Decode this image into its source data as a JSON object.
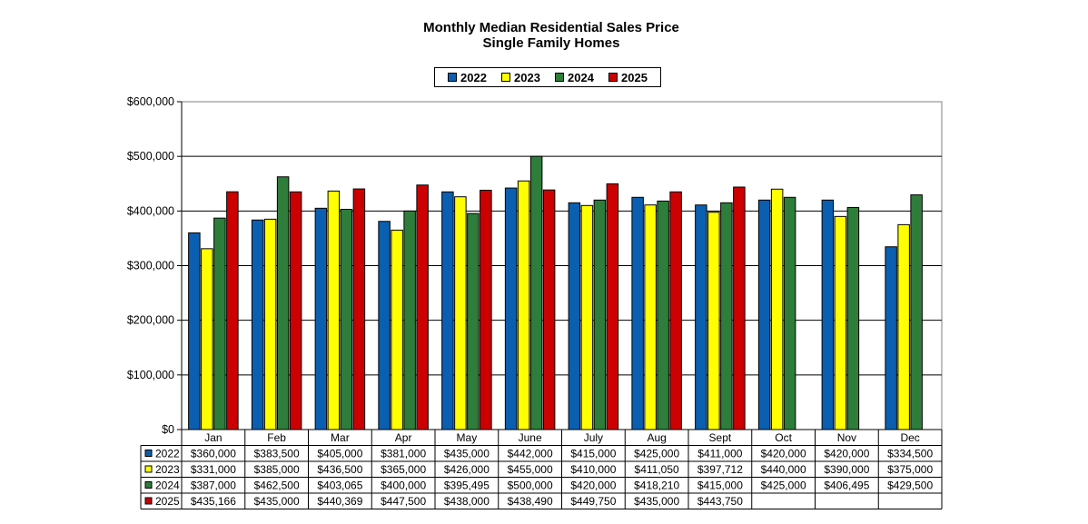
{
  "chart_data": {
    "type": "bar",
    "title": "Monthly Median Residential Sales Price",
    "subtitle": "Single Family Homes",
    "xlabel": "",
    "ylabel": "",
    "ylim": [
      0,
      600000
    ],
    "yticks": [
      0,
      100000,
      200000,
      300000,
      400000,
      500000,
      600000
    ],
    "ytick_labels": [
      "$0",
      "$100,000",
      "$200,000",
      "$300,000",
      "$400,000",
      "$500,000",
      "$600,000"
    ],
    "grid": true,
    "legend_position": "top-center",
    "categories": [
      "Jan",
      "Feb",
      "Mar",
      "Apr",
      "May",
      "June",
      "July",
      "Aug",
      "Sept",
      "Oct",
      "Nov",
      "Dec"
    ],
    "series": [
      {
        "name": "2022",
        "color": "#0b5fb0",
        "values": [
          360000,
          383500,
          405000,
          381000,
          435000,
          442000,
          415000,
          425000,
          411000,
          420000,
          420000,
          334500
        ],
        "labels": [
          "$360,000",
          "$383,500",
          "$405,000",
          "$381,000",
          "$435,000",
          "$442,000",
          "$415,000",
          "$425,000",
          "$411,000",
          "$420,000",
          "$420,000",
          "$334,500"
        ]
      },
      {
        "name": "2023",
        "color": "#ffff00",
        "values": [
          331000,
          385000,
          436500,
          365000,
          426000,
          455000,
          410000,
          411050,
          397712,
          440000,
          390000,
          375000
        ],
        "labels": [
          "$331,000",
          "$385,000",
          "$436,500",
          "$365,000",
          "$426,000",
          "$455,000",
          "$410,000",
          "$411,050",
          "$397,712",
          "$440,000",
          "$390,000",
          "$375,000"
        ]
      },
      {
        "name": "2024",
        "color": "#2e7d3a",
        "values": [
          387000,
          462500,
          403065,
          400000,
          395495,
          500000,
          420000,
          418210,
          415000,
          425000,
          406495,
          429500
        ],
        "labels": [
          "$387,000",
          "$462,500",
          "$403,065",
          "$400,000",
          "$395,495",
          "$500,000",
          "$420,000",
          "$418,210",
          "$415,000",
          "$425,000",
          "$406,495",
          "$429,500"
        ]
      },
      {
        "name": "2025",
        "color": "#cc0000",
        "values": [
          435166,
          435000,
          440369,
          447500,
          438000,
          438490,
          449750,
          435000,
          443750,
          null,
          null,
          null
        ],
        "labels": [
          "$435,166",
          "$435,000",
          "$440,369",
          "$447,500",
          "$438,000",
          "$438,490",
          "$449,750",
          "$435,000",
          "$443,750",
          "",
          "",
          ""
        ]
      }
    ]
  }
}
